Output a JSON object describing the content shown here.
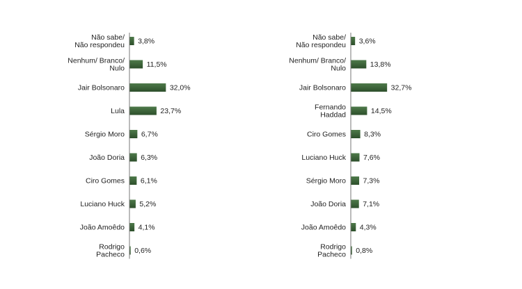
{
  "colors": {
    "bar_top": "#4e7a4a",
    "bar_bottom": "#2d4f2b",
    "axis": "#777777",
    "text": "#222222"
  },
  "chart_data": [
    {
      "type": "bar",
      "orientation": "horizontal",
      "categories": [
        [
          "Não sabe/",
          "Não respondeu"
        ],
        [
          "Nenhum/ Branco/",
          "Nulo"
        ],
        [
          "Jair Bolsonaro"
        ],
        [
          "Lula"
        ],
        [
          "Sérgio Moro"
        ],
        [
          "João Doria"
        ],
        [
          "Ciro Gomes"
        ],
        [
          "Luciano Huck"
        ],
        [
          "João Amoêdo"
        ],
        [
          "Rodrigo",
          "Pacheco"
        ]
      ],
      "values": [
        3.8,
        11.5,
        32.0,
        23.7,
        6.7,
        6.3,
        6.1,
        5.2,
        4.1,
        0.6
      ],
      "value_labels": [
        "3,8%",
        "11,5%",
        "32,0%",
        "23,7%",
        "6,7%",
        "6,3%",
        "6,1%",
        "5,2%",
        "4,1%",
        "0,6%"
      ],
      "xlim": [
        0,
        35
      ],
      "grid": false,
      "legend": "none"
    },
    {
      "type": "bar",
      "orientation": "horizontal",
      "categories": [
        [
          "Não sabe/",
          "Não respondeu"
        ],
        [
          "Nenhum/ Branco/",
          "Nulo"
        ],
        [
          "Jair Bolsonaro"
        ],
        [
          "Fernando",
          "Haddad"
        ],
        [
          "Ciro Gomes"
        ],
        [
          "Luciano Huck"
        ],
        [
          "Sérgio Moro"
        ],
        [
          "João Doria"
        ],
        [
          "João Amoêdo"
        ],
        [
          "Rodrigo",
          "Pacheco"
        ]
      ],
      "values": [
        3.6,
        13.8,
        32.7,
        14.5,
        8.3,
        7.6,
        7.3,
        7.1,
        4.3,
        0.8
      ],
      "value_labels": [
        "3,6%",
        "13,8%",
        "32,7%",
        "14,5%",
        "8,3%",
        "7,6%",
        "7,3%",
        "7,1%",
        "4,3%",
        "0,8%"
      ],
      "xlim": [
        0,
        35
      ],
      "grid": false,
      "legend": "none"
    }
  ]
}
